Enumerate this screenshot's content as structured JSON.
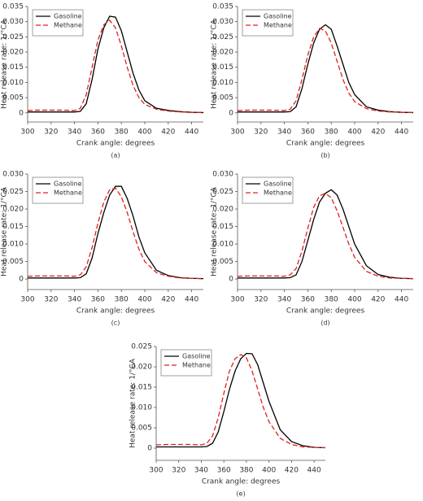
{
  "chart_data": [
    {
      "type": "line",
      "caption": "(a)",
      "x_label": "Crank angle: degrees",
      "y_label": "Heat release rate: 1/°CA",
      "legend": "upper left",
      "x": [
        300,
        310,
        320,
        330,
        340,
        345,
        350,
        355,
        360,
        365,
        370,
        375,
        380,
        385,
        390,
        395,
        400,
        410,
        420,
        430,
        440,
        450
      ],
      "series": [
        {
          "name": "Gasoline",
          "color": "#000000",
          "linestyle": "solid",
          "values": [
            0.0003,
            0.0003,
            0.0003,
            0.0003,
            0.0003,
            0.0005,
            0.003,
            0.011,
            0.021,
            0.028,
            0.0318,
            0.0315,
            0.027,
            0.02,
            0.013,
            0.0075,
            0.004,
            0.0015,
            0.0008,
            0.0004,
            0.0002,
            0.0001
          ]
        },
        {
          "name": "Methane",
          "color": "#e0201b",
          "linestyle": "dashed",
          "values": [
            0.0008,
            0.0009,
            0.0009,
            0.0009,
            0.0008,
            0.0015,
            0.006,
            0.015,
            0.024,
            0.029,
            0.0305,
            0.028,
            0.022,
            0.015,
            0.009,
            0.005,
            0.0028,
            0.0012,
            0.0006,
            0.0003,
            0.0002,
            0.0001
          ]
        }
      ],
      "xlim": [
        300,
        450
      ],
      "xticks": [
        300,
        320,
        340,
        360,
        380,
        400,
        420,
        440
      ],
      "ylim": [
        -0.003,
        0.035
      ],
      "yticks": [
        0,
        {
          "value": 0.005,
          "label": "0.005"
        },
        {
          "value": 0.01,
          "label": "0.010"
        },
        {
          "value": 0.015,
          "label": "0.015"
        },
        {
          "value": 0.02,
          "label": "0.020"
        },
        {
          "value": 0.025,
          "label": "0.025"
        },
        {
          "value": 0.03,
          "label": "0.030"
        },
        {
          "value": 0.035,
          "label": "0.035"
        }
      ]
    },
    {
      "type": "line",
      "caption": "(b)",
      "x_label": "Crank angle: degrees",
      "y_label": "Heat release rate: 1/°CA",
      "legend": "upper left",
      "x": [
        300,
        310,
        320,
        330,
        340,
        345,
        350,
        355,
        360,
        365,
        370,
        375,
        380,
        385,
        390,
        395,
        400,
        410,
        420,
        430,
        440,
        450
      ],
      "series": [
        {
          "name": "Gasoline",
          "color": "#000000",
          "linestyle": "solid",
          "values": [
            0.0003,
            0.0003,
            0.0003,
            0.0003,
            0.0003,
            0.0004,
            0.002,
            0.008,
            0.016,
            0.023,
            0.0275,
            0.029,
            0.0275,
            0.022,
            0.016,
            0.01,
            0.006,
            0.002,
            0.0009,
            0.0004,
            0.0002,
            0.0001
          ]
        },
        {
          "name": "Methane",
          "color": "#e0201b",
          "linestyle": "dashed",
          "values": [
            0.0008,
            0.0009,
            0.0009,
            0.0009,
            0.0008,
            0.0012,
            0.004,
            0.011,
            0.019,
            0.025,
            0.0278,
            0.027,
            0.023,
            0.017,
            0.011,
            0.0065,
            0.0037,
            0.0014,
            0.0006,
            0.0003,
            0.0002,
            0.0001
          ]
        }
      ],
      "xlim": [
        300,
        450
      ],
      "xticks": [
        300,
        320,
        340,
        360,
        380,
        400,
        420,
        440
      ],
      "ylim": [
        -0.003,
        0.035
      ],
      "yticks": [
        0,
        {
          "value": 0.005,
          "label": "0.005"
        },
        {
          "value": 0.01,
          "label": "0.010"
        },
        {
          "value": 0.015,
          "label": "0.015"
        },
        {
          "value": 0.02,
          "label": "0.020"
        },
        {
          "value": 0.025,
          "label": "0.025"
        },
        {
          "value": 0.03,
          "label": "0.030"
        },
        {
          "value": 0.035,
          "label": "0.035"
        }
      ]
    },
    {
      "type": "line",
      "caption": "(c)",
      "x_label": "Crank angle: degrees",
      "y_label": "Heat release rate: 1/°CA",
      "legend": "upper left",
      "x": [
        300,
        310,
        320,
        330,
        340,
        345,
        350,
        355,
        360,
        365,
        370,
        375,
        380,
        385,
        390,
        395,
        400,
        410,
        420,
        430,
        440,
        450
      ],
      "series": [
        {
          "name": "Gasoline",
          "color": "#000000",
          "linestyle": "solid",
          "values": [
            0.0003,
            0.0003,
            0.0003,
            0.0003,
            0.0003,
            0.0004,
            0.0015,
            0.006,
            0.013,
            0.019,
            0.024,
            0.0265,
            0.0265,
            0.023,
            0.018,
            0.012,
            0.0075,
            0.0025,
            0.001,
            0.0004,
            0.0002,
            0.0001
          ]
        },
        {
          "name": "Methane",
          "color": "#e0201b",
          "linestyle": "dashed",
          "values": [
            0.0008,
            0.0009,
            0.0009,
            0.0009,
            0.0008,
            0.0012,
            0.0035,
            0.009,
            0.016,
            0.022,
            0.0255,
            0.026,
            0.0235,
            0.019,
            0.0135,
            0.0085,
            0.005,
            0.0018,
            0.0008,
            0.0003,
            0.0002,
            0.0001
          ]
        }
      ],
      "xlim": [
        300,
        450
      ],
      "xticks": [
        300,
        320,
        340,
        360,
        380,
        400,
        420,
        440
      ],
      "ylim": [
        -0.003,
        0.03
      ],
      "yticks": [
        0,
        {
          "value": 0.005,
          "label": "0.005"
        },
        {
          "value": 0.01,
          "label": "0.010"
        },
        {
          "value": 0.015,
          "label": "0.015"
        },
        {
          "value": 0.02,
          "label": "0.020"
        },
        {
          "value": 0.025,
          "label": "0.025"
        },
        {
          "value": 0.03,
          "label": "0.030"
        }
      ]
    },
    {
      "type": "line",
      "caption": "(d)",
      "x_label": "Crank angle: degrees",
      "y_label": "Heat release rate: 1/°CA",
      "legend": "upper left",
      "x": [
        300,
        310,
        320,
        330,
        340,
        345,
        350,
        355,
        360,
        365,
        370,
        375,
        380,
        385,
        390,
        395,
        400,
        410,
        420,
        430,
        440,
        450
      ],
      "series": [
        {
          "name": "Gasoline",
          "color": "#000000",
          "linestyle": "solid",
          "values": [
            0.0003,
            0.0003,
            0.0003,
            0.0003,
            0.0003,
            0.0004,
            0.0012,
            0.005,
            0.011,
            0.017,
            0.022,
            0.0245,
            0.0255,
            0.024,
            0.02,
            0.015,
            0.01,
            0.0038,
            0.0013,
            0.0005,
            0.0002,
            0.0001
          ]
        },
        {
          "name": "Methane",
          "color": "#e0201b",
          "linestyle": "dashed",
          "values": [
            0.0008,
            0.0009,
            0.0009,
            0.0009,
            0.0008,
            0.0012,
            0.003,
            0.008,
            0.0145,
            0.0205,
            0.0238,
            0.0245,
            0.0232,
            0.0195,
            0.0148,
            0.01,
            0.0062,
            0.0022,
            0.0008,
            0.0003,
            0.0002,
            0.0001
          ]
        }
      ],
      "xlim": [
        300,
        450
      ],
      "xticks": [
        300,
        320,
        340,
        360,
        380,
        400,
        420,
        440
      ],
      "ylim": [
        -0.003,
        0.03
      ],
      "yticks": [
        0,
        {
          "value": 0.005,
          "label": "0.005"
        },
        {
          "value": 0.01,
          "label": "0.010"
        },
        {
          "value": 0.015,
          "label": "0.015"
        },
        {
          "value": 0.02,
          "label": "0.020"
        },
        {
          "value": 0.025,
          "label": "0.025"
        },
        {
          "value": 0.03,
          "label": "0.030"
        }
      ]
    },
    {
      "type": "line",
      "caption": "(e)",
      "x_label": "Crank angle: degrees",
      "y_label": "Heat release rate: 1/°CA",
      "legend": "upper left",
      "x": [
        300,
        310,
        320,
        330,
        340,
        345,
        350,
        355,
        360,
        365,
        370,
        375,
        380,
        385,
        390,
        395,
        400,
        410,
        420,
        430,
        440,
        450
      ],
      "series": [
        {
          "name": "Gasoline",
          "color": "#000000",
          "linestyle": "solid",
          "values": [
            0.0003,
            0.0003,
            0.0003,
            0.0003,
            0.0003,
            0.0004,
            0.0012,
            0.004,
            0.009,
            0.0145,
            0.019,
            0.022,
            0.0233,
            0.0232,
            0.0205,
            0.016,
            0.0115,
            0.0045,
            0.0016,
            0.0006,
            0.0002,
            0.0001
          ]
        },
        {
          "name": "Methane",
          "color": "#e0201b",
          "linestyle": "dashed",
          "values": [
            0.0008,
            0.0009,
            0.0009,
            0.0009,
            0.0008,
            0.0012,
            0.003,
            0.0075,
            0.0135,
            0.019,
            0.022,
            0.023,
            0.0222,
            0.019,
            0.0145,
            0.01,
            0.0065,
            0.0024,
            0.0009,
            0.0003,
            0.0002,
            0.0001
          ]
        }
      ],
      "xlim": [
        300,
        450
      ],
      "xticks": [
        300,
        320,
        340,
        360,
        380,
        400,
        420,
        440
      ],
      "ylim": [
        -0.003,
        0.025
      ],
      "yticks": [
        0,
        {
          "value": 0.005,
          "label": "0.005"
        },
        {
          "value": 0.01,
          "label": "0.010"
        },
        {
          "value": 0.015,
          "label": "0.015"
        },
        {
          "value": 0.02,
          "label": "0.020"
        },
        {
          "value": 0.025,
          "label": "0.025"
        }
      ]
    }
  ]
}
